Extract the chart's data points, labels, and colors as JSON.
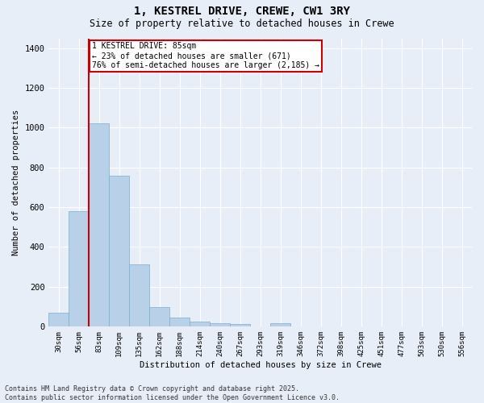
{
  "title": "1, KESTREL DRIVE, CREWE, CW1 3RY",
  "subtitle": "Size of property relative to detached houses in Crewe",
  "xlabel": "Distribution of detached houses by size in Crewe",
  "ylabel": "Number of detached properties",
  "bar_color": "#b8d0e8",
  "bar_edge_color": "#7aaed0",
  "background_color": "#e8eef8",
  "grid_color": "#ffffff",
  "bins": [
    "30sqm",
    "56sqm",
    "83sqm",
    "109sqm",
    "135sqm",
    "162sqm",
    "188sqm",
    "214sqm",
    "240sqm",
    "267sqm",
    "293sqm",
    "319sqm",
    "346sqm",
    "372sqm",
    "398sqm",
    "425sqm",
    "451sqm",
    "477sqm",
    "503sqm",
    "530sqm",
    "556sqm"
  ],
  "values": [
    70,
    580,
    1020,
    760,
    310,
    95,
    42,
    25,
    15,
    12,
    0,
    15,
    0,
    0,
    0,
    0,
    0,
    0,
    0,
    0,
    0
  ],
  "red_line_bin_index": 2,
  "annotation_line1": "1 KESTREL DRIVE: 85sqm",
  "annotation_line2": "← 23% of detached houses are smaller (671)",
  "annotation_line3": "76% of semi-detached houses are larger (2,185) →",
  "annotation_box_color": "#ffffff",
  "annotation_box_edge": "#cc0000",
  "red_line_color": "#cc0000",
  "ylim": [
    0,
    1450
  ],
  "yticks": [
    0,
    200,
    400,
    600,
    800,
    1000,
    1200,
    1400
  ],
  "footer": "Contains HM Land Registry data © Crown copyright and database right 2025.\nContains public sector information licensed under the Open Government Licence v3.0."
}
